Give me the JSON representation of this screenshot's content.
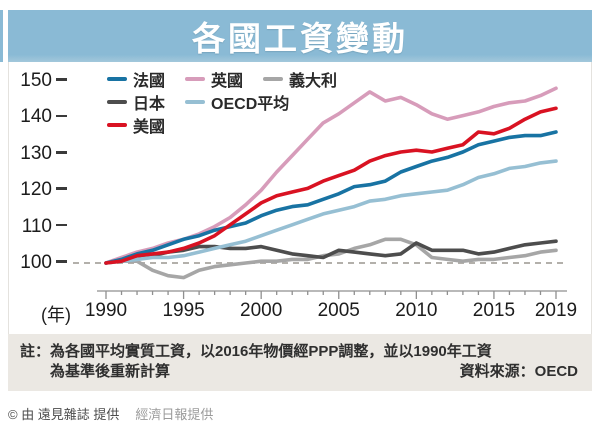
{
  "title": "各國工資變動",
  "chart_data": {
    "type": "line",
    "title": "各國工資變動",
    "x_axis_label": "(年)",
    "x": [
      1990,
      1991,
      1992,
      1993,
      1994,
      1995,
      1996,
      1997,
      1998,
      1999,
      2000,
      2001,
      2002,
      2003,
      2004,
      2005,
      2006,
      2007,
      2008,
      2009,
      2010,
      2011,
      2012,
      2013,
      2014,
      2015,
      2016,
      2017,
      2018,
      2019
    ],
    "x_tick_years": [
      1990,
      1995,
      2000,
      2005,
      2010,
      2015,
      2019
    ],
    "y_ticks": [
      150,
      140,
      130,
      120,
      110,
      100
    ],
    "ylim": [
      95,
      152
    ],
    "baseline": 100,
    "grid": "off",
    "legend_position": "top-left-inside",
    "series": [
      {
        "name": "法國",
        "color": "#1873a3",
        "values": [
          100,
          101,
          102.5,
          103.5,
          105,
          106.5,
          107.5,
          109,
          110,
          111,
          113,
          114.5,
          115.5,
          116,
          117.5,
          119,
          121,
          121.5,
          122.5,
          125,
          126.5,
          128,
          129,
          130.5,
          132.5,
          133.5,
          134.5,
          135,
          135,
          136
        ]
      },
      {
        "name": "英國",
        "color": "#d79cba",
        "values": [
          100,
          101.5,
          103,
          104,
          105.5,
          106.5,
          108,
          110,
          112.5,
          116,
          120,
          125,
          129.5,
          134,
          138.5,
          141,
          144,
          147,
          144.5,
          145.5,
          143.5,
          141,
          139.5,
          140.5,
          141.5,
          143,
          144,
          144.5,
          146,
          148
        ]
      },
      {
        "name": "義大利",
        "color": "#a6a6a6",
        "values": [
          100,
          100.5,
          100.5,
          98,
          96.5,
          96,
          98,
          99,
          99.5,
          100,
          100.5,
          100.5,
          101,
          101,
          102,
          102.5,
          104,
          105,
          106.5,
          106.5,
          105,
          101.5,
          101,
          100.5,
          101,
          101,
          101.5,
          102,
          103,
          103.5
        ]
      },
      {
        "name": "日本",
        "color": "#4d4d4d",
        "values": [
          100,
          101,
          101.5,
          102,
          103,
          103.5,
          104.5,
          104.5,
          104,
          104,
          104.5,
          103.5,
          102.5,
          102,
          101.5,
          103.5,
          103,
          102.5,
          102,
          102.5,
          105.5,
          103.5,
          103.5,
          103.5,
          102.5,
          103,
          104,
          105,
          105.5,
          106
        ]
      },
      {
        "name": "OECD平均",
        "color": "#96bfd3",
        "values": [
          100,
          100.5,
          101,
          101.5,
          101.5,
          102,
          103,
          104,
          105,
          106,
          107.5,
          109,
          110.5,
          112,
          113.5,
          114.5,
          115.5,
          117,
          117.5,
          118.5,
          119,
          119.5,
          120,
          121.5,
          123.5,
          124.5,
          126,
          126.5,
          127.5,
          128
        ]
      },
      {
        "name": "美國",
        "color": "#d91222",
        "values": [
          100,
          100.5,
          102,
          102.5,
          103,
          104,
          105.5,
          107.5,
          110.5,
          113.5,
          116.5,
          118.5,
          119.5,
          120.5,
          122.5,
          124,
          125.5,
          128,
          129.5,
          130.5,
          131,
          130.5,
          131.5,
          132.5,
          136,
          135.5,
          137,
          139.5,
          141.5,
          142.5
        ]
      }
    ],
    "legend_rows": [
      [
        "法國",
        "英國",
        "義大利"
      ],
      [
        "日本",
        "OECD平均"
      ],
      [
        "美國"
      ]
    ],
    "draw_order": [
      "義大利",
      "日本",
      "OECD平均",
      "英國",
      "法國",
      "美國"
    ]
  },
  "note": {
    "line1": "註：為各國平均實質工資，以2016年物價經PPP調整，並以1990年工資",
    "line2": "為基準後重新計算",
    "source": "資料來源：OECD"
  },
  "caption": {
    "credit": "© 由 遠見雜誌 提供",
    "provider": "經濟日報提供"
  },
  "colors": {
    "title_bar": "#8abad5",
    "note_bg": "#ebe8e3",
    "axis": "#8f8f8f",
    "baseline_dash": "#b3b0ab"
  }
}
